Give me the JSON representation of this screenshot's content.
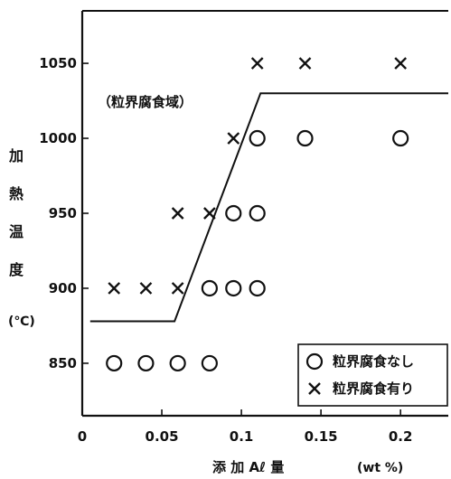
{
  "chart_data": {
    "type": "scatter",
    "title": "",
    "annotation": "（粒界腐食域）",
    "xlabel": "添 加 Aℓ 量",
    "xunit": "(wt %)",
    "ylabel": "加 熱 温 度",
    "yunit": "(℃)",
    "xlim": [
      0,
      0.23
    ],
    "ylim": [
      815,
      1085
    ],
    "xticks": [
      0,
      0.05,
      0.1,
      0.15,
      0.2
    ],
    "xtick_labels": [
      "0",
      "0.05",
      "0.1",
      "0.15",
      "0.2"
    ],
    "yticks": [
      850,
      900,
      950,
      1000,
      1050
    ],
    "ytick_labels": [
      "850",
      "900",
      "950",
      "1000",
      "1050"
    ],
    "grid": false,
    "legend_position": "bottom-right",
    "series": [
      {
        "name": "粒界腐食なし",
        "marker": "circle",
        "points": [
          {
            "x": 0.02,
            "y": 850
          },
          {
            "x": 0.04,
            "y": 850
          },
          {
            "x": 0.06,
            "y": 850
          },
          {
            "x": 0.08,
            "y": 850
          },
          {
            "x": 0.08,
            "y": 900
          },
          {
            "x": 0.095,
            "y": 900
          },
          {
            "x": 0.11,
            "y": 900
          },
          {
            "x": 0.095,
            "y": 950
          },
          {
            "x": 0.11,
            "y": 950
          },
          {
            "x": 0.11,
            "y": 1000
          },
          {
            "x": 0.14,
            "y": 1000
          },
          {
            "x": 0.2,
            "y": 1000
          }
        ]
      },
      {
        "name": "粒界腐食有り",
        "marker": "cross",
        "points": [
          {
            "x": 0.02,
            "y": 900
          },
          {
            "x": 0.04,
            "y": 900
          },
          {
            "x": 0.06,
            "y": 900
          },
          {
            "x": 0.06,
            "y": 950
          },
          {
            "x": 0.08,
            "y": 950
          },
          {
            "x": 0.095,
            "y": 1000
          },
          {
            "x": 0.11,
            "y": 1050
          },
          {
            "x": 0.14,
            "y": 1050
          },
          {
            "x": 0.2,
            "y": 1050
          }
        ]
      }
    ],
    "boundary_line": [
      {
        "x": 0.005,
        "y": 878
      },
      {
        "x": 0.058,
        "y": 878
      },
      {
        "x": 0.112,
        "y": 1030
      },
      {
        "x": 0.23,
        "y": 1030
      }
    ]
  }
}
